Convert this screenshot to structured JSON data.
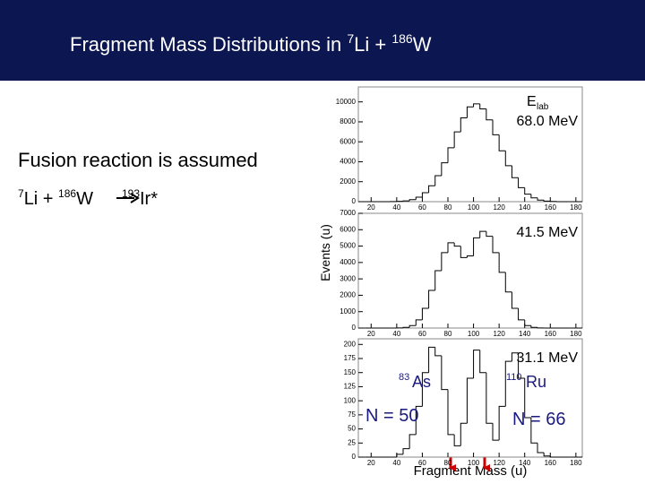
{
  "title": {
    "pre": "Fragment Mass Distributions in ",
    "sup1": "7",
    "mid": "Li + ",
    "sup2": "186",
    "post": "W"
  },
  "note": "Fusion reaction is assumed",
  "reaction": {
    "sup1": "7",
    "a": "Li + ",
    "sup2": "186",
    "b": "W",
    "sup3": "193",
    "c": "Ir*"
  },
  "y_axis_label": "Events (u)",
  "x_axis_label": "Fragment Mass (u)",
  "chart_data": [
    {
      "type": "histogram",
      "energy_symbol": "E",
      "energy_subscript": "lab",
      "energy": "68.0 MeV",
      "color": "#000000",
      "bins": [
        10,
        15,
        20,
        25,
        30,
        35,
        40,
        45,
        50,
        55,
        60,
        65,
        70,
        75,
        80,
        85,
        90,
        95,
        100,
        105,
        110,
        115,
        120,
        125,
        130,
        135,
        140,
        145,
        150,
        155,
        160,
        165,
        170,
        175,
        180,
        185
      ],
      "values": [
        0,
        0,
        0,
        0,
        0,
        10,
        30,
        80,
        200,
        450,
        900,
        1600,
        2600,
        3900,
        5400,
        7000,
        8400,
        9500,
        9800,
        9300,
        8200,
        6700,
        5100,
        3600,
        2400,
        1400,
        750,
        380,
        160,
        60,
        20,
        0,
        0,
        0,
        0
      ],
      "xlim": [
        10,
        185
      ],
      "ylim": [
        0,
        11500
      ],
      "xticks": [
        20,
        40,
        60,
        80,
        100,
        120,
        140,
        160,
        180
      ],
      "yticks": [
        0,
        2000,
        4000,
        6000,
        8000,
        10000
      ]
    },
    {
      "type": "histogram",
      "energy": "41.5 MeV",
      "color": "#000000",
      "bins": [
        10,
        15,
        20,
        25,
        30,
        35,
        40,
        45,
        50,
        55,
        60,
        65,
        70,
        75,
        80,
        85,
        90,
        95,
        100,
        105,
        110,
        115,
        120,
        125,
        130,
        135,
        140,
        145,
        150,
        155,
        160,
        165,
        170,
        175,
        180,
        185
      ],
      "values": [
        0,
        0,
        0,
        0,
        0,
        0,
        10,
        40,
        150,
        500,
        1200,
        2300,
        3500,
        4600,
        5200,
        5000,
        4300,
        4400,
        5500,
        5900,
        5600,
        4600,
        3400,
        2200,
        1200,
        500,
        150,
        40,
        10,
        0,
        0,
        0,
        0,
        0,
        0
      ],
      "xlim": [
        10,
        185
      ],
      "ylim": [
        0,
        7000
      ],
      "xticks": [
        20,
        40,
        60,
        80,
        100,
        120,
        140,
        160,
        180
      ],
      "yticks": [
        0,
        1000,
        2000,
        3000,
        4000,
        5000,
        6000,
        7000
      ]
    },
    {
      "type": "histogram",
      "energy": "31.1 MeV",
      "color": "#000000",
      "bins": [
        10,
        15,
        20,
        25,
        30,
        35,
        40,
        45,
        50,
        55,
        60,
        65,
        70,
        75,
        80,
        85,
        90,
        95,
        100,
        105,
        110,
        115,
        120,
        125,
        130,
        135,
        140,
        145,
        150,
        155,
        160,
        165,
        170,
        175,
        180,
        185
      ],
      "values": [
        0,
        0,
        0,
        0,
        0,
        0,
        5,
        15,
        40,
        90,
        150,
        195,
        180,
        120,
        40,
        20,
        60,
        140,
        190,
        150,
        60,
        30,
        90,
        170,
        185,
        140,
        70,
        25,
        8,
        2,
        0,
        0,
        0,
        0,
        0
      ],
      "xlim": [
        10,
        185
      ],
      "ylim": [
        0,
        210
      ],
      "xticks": [
        20,
        40,
        60,
        80,
        100,
        120,
        140,
        160,
        180
      ],
      "yticks": [
        0,
        25,
        50,
        75,
        100,
        125,
        150,
        175,
        200
      ],
      "annotations": [
        {
          "mass": "83",
          "element": "As",
          "shell": "N = 50"
        },
        {
          "mass": "110",
          "element": "Ru",
          "shell": "N = 66"
        }
      ]
    }
  ]
}
